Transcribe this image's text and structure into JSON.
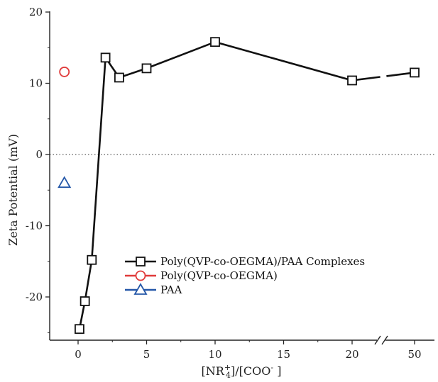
{
  "chart_data": {
    "type": "line",
    "title": "",
    "ylabel": "Zeta Potential (mV)",
    "xlabel": {
      "prefix": "[NR",
      "sup": "+",
      "sub": "4",
      "middle": "]/[COO",
      "sup2": "-",
      "suffix": " ]"
    },
    "ylim": [
      -26,
      20
    ],
    "y_ticks": [
      -20,
      -10,
      0,
      10,
      20
    ],
    "y_tick_labels": [
      "-20",
      "-10",
      "0",
      "10",
      "20"
    ],
    "x_ticks": [
      0,
      5,
      10,
      15,
      20,
      50
    ],
    "x_tick_labels": [
      "0",
      "5",
      "10",
      "15",
      "20",
      "50"
    ],
    "x_axis_break": "between 20 and 50",
    "zero_reference_line": true,
    "grid": false,
    "legend_position": "lower-right",
    "series": [
      {
        "name": "Poly(QVP-co-OEGMA)/PAA Complexes",
        "marker": "square",
        "color": "#111111",
        "x": [
          0.1,
          0.5,
          1,
          2,
          3,
          5,
          10,
          20,
          50
        ],
        "y": [
          -24.5,
          -20.6,
          -14.8,
          13.6,
          10.8,
          12.1,
          15.8,
          10.4,
          11.5
        ]
      },
      {
        "name": "Poly(QVP-co-OEGMA)",
        "marker": "circle",
        "color": "#e03a3a",
        "x": [
          -1
        ],
        "y": [
          11.6
        ]
      },
      {
        "name": "PAA",
        "marker": "triangle",
        "color": "#2457a8",
        "x": [
          -1
        ],
        "y": [
          -4.0
        ]
      }
    ]
  }
}
